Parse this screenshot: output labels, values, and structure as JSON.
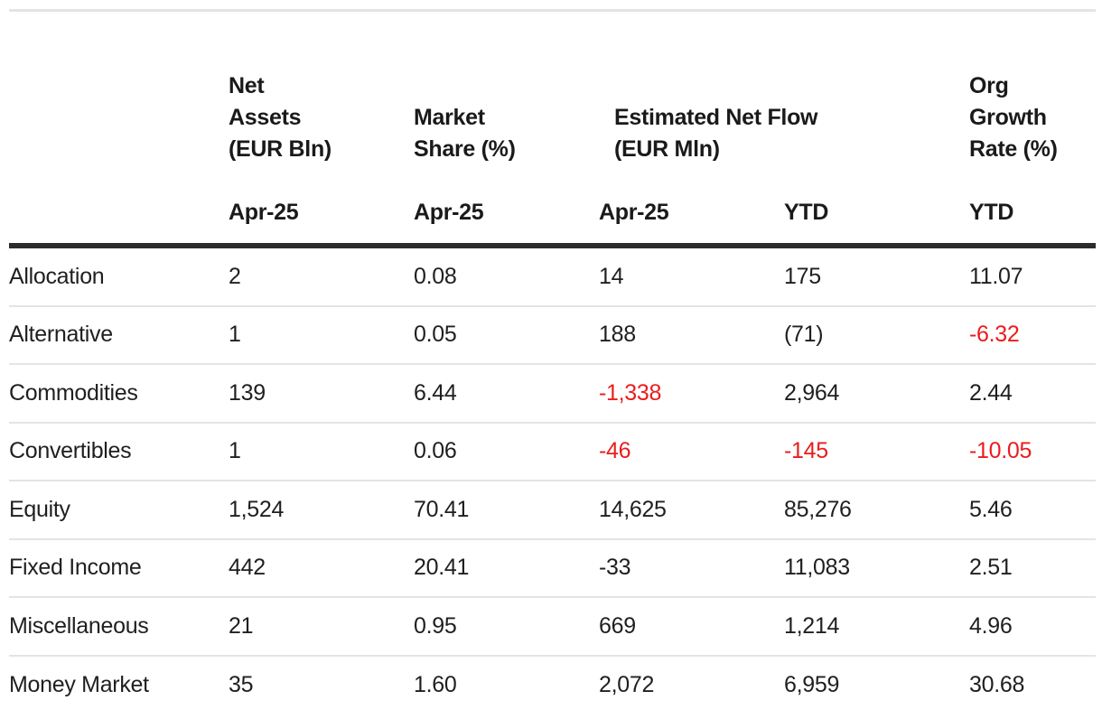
{
  "colors": {
    "negative_value": "#eb1c1c",
    "text": "#1f1f1f",
    "header_rule": "#2b2b2b",
    "divider": "#e4e4e4"
  },
  "table": {
    "column_groups": [
      {
        "lines": [
          "Net",
          "Assets",
          "(EUR Bln)"
        ]
      },
      {
        "lines": [
          "Market",
          "Share (%)"
        ]
      },
      {
        "lines": [
          "Estimated Net Flow",
          "(EUR Mln)"
        ]
      },
      {
        "lines": [
          "Org",
          "Growth",
          "Rate (%)"
        ]
      }
    ],
    "subheaders": [
      "Apr-25",
      "Apr-25",
      "Apr-25",
      "YTD",
      "YTD"
    ],
    "rows": [
      {
        "label": "Allocation",
        "cells": [
          {
            "text": "2"
          },
          {
            "text": "0.08"
          },
          {
            "text": "14"
          },
          {
            "text": "175"
          },
          {
            "text": "11.07"
          }
        ]
      },
      {
        "label": "Alternative",
        "cells": [
          {
            "text": "1"
          },
          {
            "text": "0.05"
          },
          {
            "text": "188"
          },
          {
            "text": "(71)"
          },
          {
            "text": "-6.32",
            "tone": "negative"
          }
        ]
      },
      {
        "label": "Commodities",
        "cells": [
          {
            "text": "139"
          },
          {
            "text": "6.44"
          },
          {
            "text": "-1,338",
            "tone": "negative"
          },
          {
            "text": "2,964"
          },
          {
            "text": "2.44"
          }
        ]
      },
      {
        "label": "Convertibles",
        "cells": [
          {
            "text": "1"
          },
          {
            "text": "0.06"
          },
          {
            "text": "-46",
            "tone": "negative"
          },
          {
            "text": "-145",
            "tone": "negative"
          },
          {
            "text": "-10.05",
            "tone": "negative"
          }
        ]
      },
      {
        "label": "Equity",
        "cells": [
          {
            "text": "1,524"
          },
          {
            "text": "70.41"
          },
          {
            "text": "14,625"
          },
          {
            "text": "85,276"
          },
          {
            "text": "5.46"
          }
        ]
      },
      {
        "label": "Fixed Income",
        "cells": [
          {
            "text": "442"
          },
          {
            "text": "20.41"
          },
          {
            "text": "-33"
          },
          {
            "text": "11,083"
          },
          {
            "text": "2.51"
          }
        ]
      },
      {
        "label": "Miscellaneous",
        "cells": [
          {
            "text": "21"
          },
          {
            "text": "0.95"
          },
          {
            "text": "669"
          },
          {
            "text": "1,214"
          },
          {
            "text": "4.96"
          }
        ]
      },
      {
        "label": "Money Market",
        "cells": [
          {
            "text": "35"
          },
          {
            "text": "1.60"
          },
          {
            "text": "2,072"
          },
          {
            "text": "6,959"
          },
          {
            "text": "30.68"
          }
        ]
      }
    ]
  }
}
